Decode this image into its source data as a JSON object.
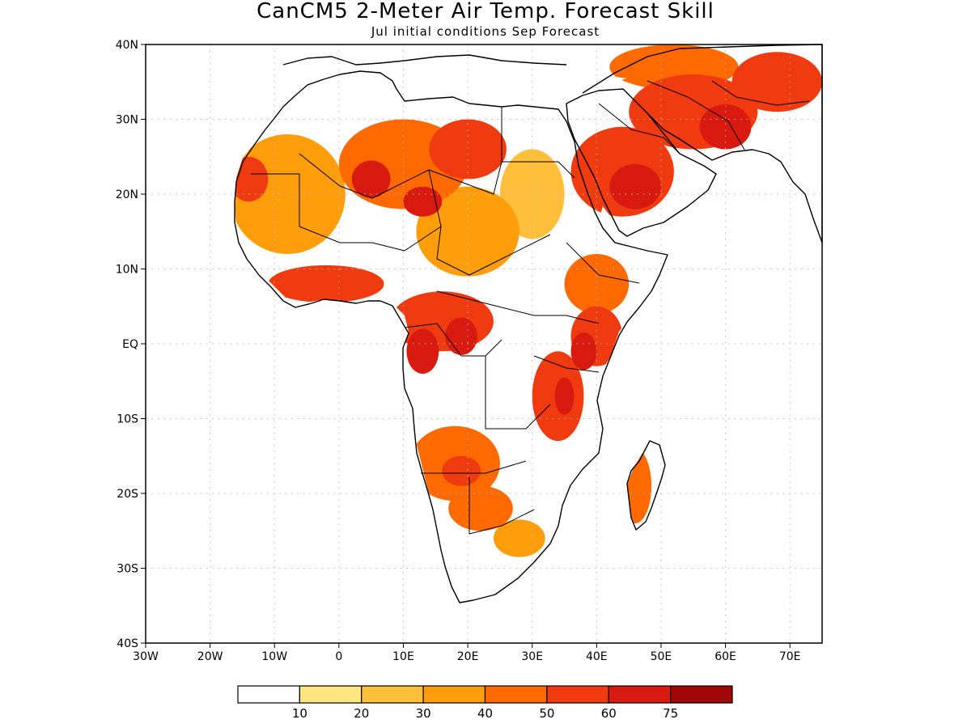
{
  "title": "CanCM5 2-Meter Air Temp. Forecast Skill",
  "subtitle": "Jul initial conditions  Sep Forecast",
  "map": {
    "lon_range": [
      -30,
      75
    ],
    "lat_range": [
      -40,
      40
    ],
    "lon_ticks": [
      {
        "value": -30,
        "label": "30W"
      },
      {
        "value": -20,
        "label": "20W"
      },
      {
        "value": -10,
        "label": "10W"
      },
      {
        "value": 0,
        "label": "0"
      },
      {
        "value": 10,
        "label": "10E"
      },
      {
        "value": 20,
        "label": "20E"
      },
      {
        "value": 30,
        "label": "30E"
      },
      {
        "value": 40,
        "label": "40E"
      },
      {
        "value": 50,
        "label": "50E"
      },
      {
        "value": 60,
        "label": "60E"
      },
      {
        "value": 70,
        "label": "70E"
      }
    ],
    "lat_ticks": [
      {
        "value": 40,
        "label": "40N"
      },
      {
        "value": 30,
        "label": "30N"
      },
      {
        "value": 20,
        "label": "20N"
      },
      {
        "value": 10,
        "label": "10N"
      },
      {
        "value": 0,
        "label": "EQ"
      },
      {
        "value": -10,
        "label": "10S"
      },
      {
        "value": -20,
        "label": "20S"
      },
      {
        "value": -30,
        "label": "30S"
      },
      {
        "value": -40,
        "label": "40S"
      }
    ],
    "grid": "dotted"
  },
  "colorbar": {
    "colors": [
      "#ffffff",
      "#ffe680",
      "#ffbf3a",
      "#ff9d0a",
      "#ff6a00",
      "#f03a10",
      "#d81a10",
      "#a00808"
    ],
    "labels": [
      "10",
      "20",
      "30",
      "40",
      "50",
      "60",
      "75"
    ]
  },
  "skill_regions": [
    {
      "lon": -8,
      "lat": 20,
      "rx": 9,
      "ry": 8,
      "level": 3
    },
    {
      "lon": 10,
      "lat": 24,
      "rx": 10,
      "ry": 6,
      "level": 4
    },
    {
      "lon": 20,
      "lat": 26,
      "rx": 6,
      "ry": 4,
      "level": 5
    },
    {
      "lon": 5,
      "lat": 22,
      "rx": 3,
      "ry": 2.5,
      "level": 6
    },
    {
      "lon": 13,
      "lat": 19,
      "rx": 3,
      "ry": 2,
      "level": 6
    },
    {
      "lon": -2,
      "lat": 8,
      "rx": 9,
      "ry": 2.5,
      "level": 5
    },
    {
      "lon": -14,
      "lat": 22,
      "rx": 3,
      "ry": 3,
      "level": 5
    },
    {
      "lon": 20,
      "lat": 15,
      "rx": 8,
      "ry": 6,
      "level": 3
    },
    {
      "lon": 30,
      "lat": 20,
      "rx": 5,
      "ry": 6,
      "level": 2
    },
    {
      "lon": 44,
      "lat": 23,
      "rx": 8,
      "ry": 6,
      "level": 5
    },
    {
      "lon": 46,
      "lat": 21,
      "rx": 4,
      "ry": 3,
      "level": 6
    },
    {
      "lon": 55,
      "lat": 31,
      "rx": 10,
      "ry": 5,
      "level": 5
    },
    {
      "lon": 60,
      "lat": 29,
      "rx": 4,
      "ry": 3,
      "level": 6
    },
    {
      "lon": 68,
      "lat": 35,
      "rx": 7,
      "ry": 4,
      "level": 5
    },
    {
      "lon": 52,
      "lat": 37,
      "rx": 10,
      "ry": 3,
      "level": 4
    },
    {
      "lon": 40,
      "lat": 8,
      "rx": 5,
      "ry": 4,
      "level": 4
    },
    {
      "lon": 40,
      "lat": 1,
      "rx": 4,
      "ry": 4,
      "level": 5
    },
    {
      "lon": 38,
      "lat": -1,
      "rx": 2,
      "ry": 2.5,
      "level": 6
    },
    {
      "lon": 16,
      "lat": 3,
      "rx": 8,
      "ry": 4,
      "level": 5
    },
    {
      "lon": 19,
      "lat": 1,
      "rx": 2.5,
      "ry": 2.5,
      "level": 6
    },
    {
      "lon": 13,
      "lat": -1,
      "rx": 2.5,
      "ry": 3,
      "level": 6
    },
    {
      "lon": 34,
      "lat": -7,
      "rx": 4,
      "ry": 6,
      "level": 5
    },
    {
      "lon": 35,
      "lat": -7,
      "rx": 1.5,
      "ry": 2.5,
      "level": 6
    },
    {
      "lon": 18,
      "lat": -16,
      "rx": 7,
      "ry": 5,
      "level": 4
    },
    {
      "lon": 19,
      "lat": -17,
      "rx": 3,
      "ry": 2,
      "level": 5
    },
    {
      "lon": 22,
      "lat": -22,
      "rx": 5,
      "ry": 3,
      "level": 4
    },
    {
      "lon": 46,
      "lat": -19,
      "rx": 2.5,
      "ry": 5,
      "level": 4
    },
    {
      "lon": 28,
      "lat": -26,
      "rx": 4,
      "ry": 2.5,
      "level": 3
    }
  ]
}
